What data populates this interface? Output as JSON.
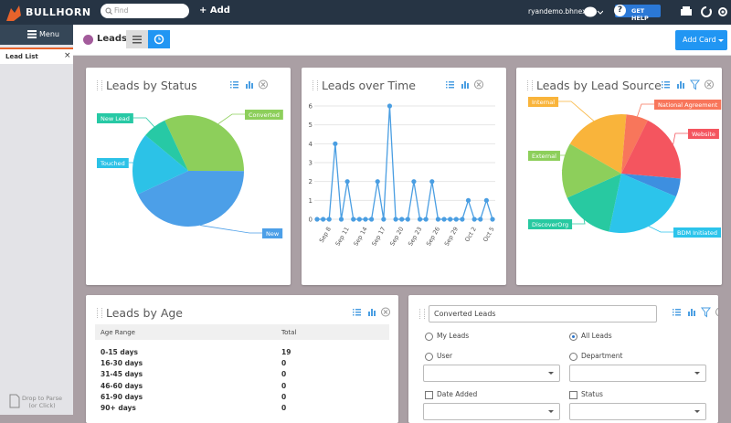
{
  "topbar": {
    "logo": "BULLHORN",
    "search_placeholder": "Find",
    "add": "Add",
    "user": "ryandemo.bhnext",
    "help": "GET HELP"
  },
  "sidebar": {
    "menu": "Menu",
    "tab": "Lead List",
    "drop": "Drop to Parse",
    "drop_sub": "(or Click)"
  },
  "header": {
    "title": "Leads",
    "add_card": "Add Card"
  },
  "chart_data": [
    {
      "type": "pie",
      "title": "Leads by Status",
      "categories": [
        "Converted",
        "New",
        "Touched",
        "New Lead"
      ],
      "values": [
        32,
        43,
        18,
        7
      ],
      "colors": [
        "#8dcf5b",
        "#4c9fe8",
        "#2cc2e7",
        "#27c9a5"
      ]
    },
    {
      "type": "line",
      "title": "Leads over Time",
      "categories": [
        null,
        null,
        "Sep 8",
        null,
        null,
        "Sep 11",
        null,
        null,
        "Sep 14",
        null,
        null,
        "Sep 17",
        null,
        null,
        "Sep 20",
        null,
        null,
        "Sep 23",
        null,
        null,
        "Sep 26",
        null,
        null,
        "Sep 29",
        null,
        null,
        "Oct 2",
        null,
        null,
        "Oct 5"
      ],
      "values": [
        0,
        0,
        0,
        4,
        0,
        2,
        0,
        0,
        0,
        0,
        2,
        0,
        6,
        0,
        0,
        0,
        2,
        0,
        0,
        2,
        0,
        0,
        0,
        0,
        0,
        1,
        0,
        0,
        1,
        0
      ],
      "color": "#4a9ee2",
      "ylim": [
        0,
        6
      ],
      "yticks": [
        0,
        1,
        2,
        3,
        4,
        5,
        6
      ],
      "grid": true
    },
    {
      "type": "pie",
      "title": "Leads by Lead Source",
      "categories": [
        "Internal",
        "National Agreement",
        "Website",
        null,
        "BDM Initiated",
        "DiscoverOrg",
        "External"
      ],
      "values": [
        18,
        6,
        19,
        5,
        22,
        15,
        15
      ],
      "colors": [
        "#f9b43b",
        "#f8765b",
        "#f4555f",
        "#3d8fe0",
        "#2cc4eb",
        "#28c9a1",
        "#8dcf5b"
      ]
    }
  ],
  "table": {
    "title": "Leads by Age",
    "columns": [
      "Age Range",
      "Total"
    ],
    "rows": [
      [
        "0-15 days",
        19
      ],
      [
        "16-30 days",
        0
      ],
      [
        "31-45 days",
        0
      ],
      [
        "46-60 days",
        0
      ],
      [
        "61-90 days",
        0
      ],
      [
        "90+ days",
        0
      ]
    ]
  },
  "filter": {
    "name": "Converted Leads",
    "options": [
      {
        "label": "My Leads",
        "kind": "radio",
        "selected": false
      },
      {
        "label": "All Leads",
        "kind": "radio",
        "selected": true
      },
      {
        "label": "User",
        "kind": "radio",
        "selected": false
      },
      {
        "label": "Department",
        "kind": "radio",
        "selected": false
      },
      {
        "label": "Date Added",
        "kind": "checkbox",
        "selected": false
      },
      {
        "label": "Status",
        "kind": "checkbox",
        "selected": false
      }
    ]
  }
}
